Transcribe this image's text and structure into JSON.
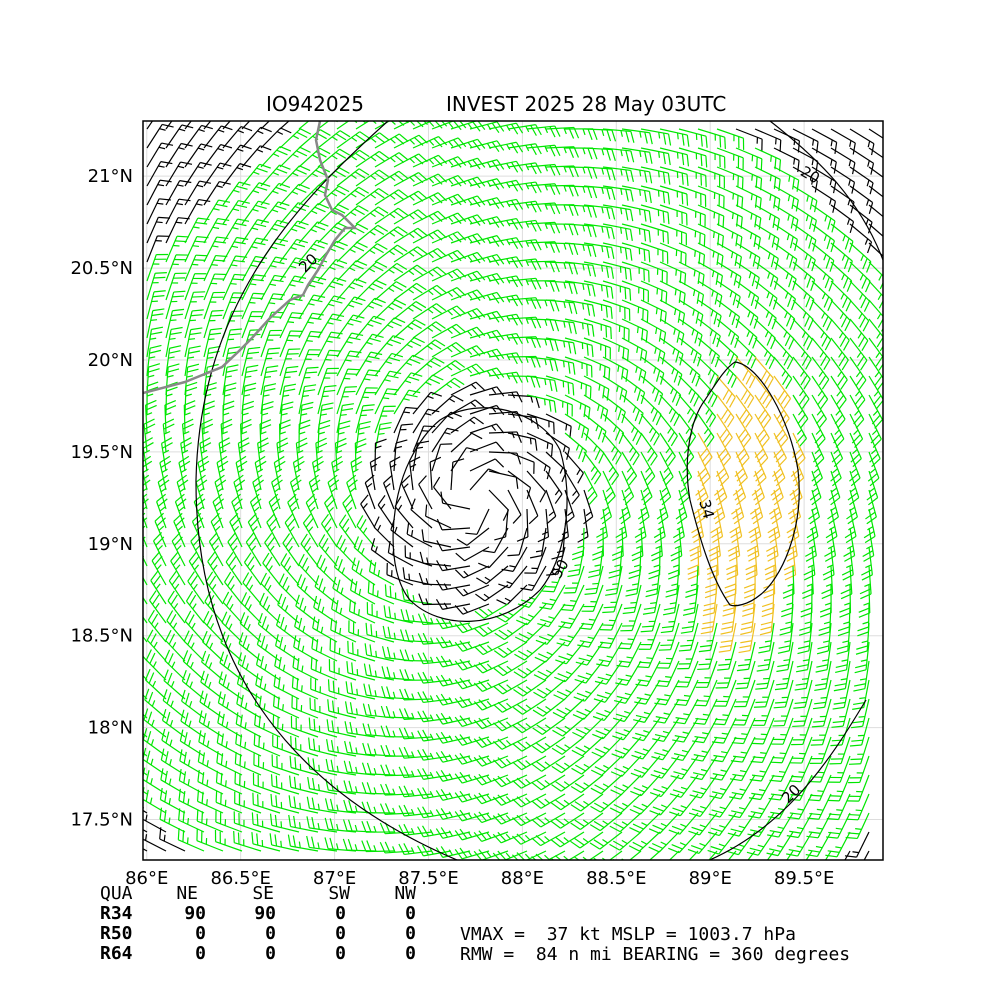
{
  "title": {
    "storm_id": "IO942025",
    "description": "INVEST 2025 28 May 03UTC"
  },
  "map": {
    "lon_range": [
      85.98,
      89.92
    ],
    "lat_range": [
      17.28,
      21.3
    ],
    "lon_ticks": [
      "86°E",
      "86.5°E",
      "87°E",
      "87.5°E",
      "88°E",
      "88.5°E",
      "89°E",
      "89.5°E"
    ],
    "lon_tick_values": [
      86.0,
      86.5,
      87.0,
      87.5,
      88.0,
      88.5,
      89.0,
      89.5
    ],
    "lat_ticks": [
      "17.5°N",
      "18°N",
      "18.5°N",
      "19°N",
      "19.5°N",
      "20°N",
      "20.5°N",
      "21°N"
    ],
    "lat_tick_values": [
      17.5,
      18.0,
      18.5,
      19.0,
      19.5,
      20.0,
      20.5,
      21.0
    ],
    "storm_center": {
      "lon": 87.75,
      "lat": 19.25
    },
    "contour_labels": [
      "20",
      "20",
      "20",
      "50",
      "34"
    ],
    "colors": {
      "below_34kt_barbs": "#000000",
      "34_50kt_barbs": "#00e600",
      "50_64kt_barbs": "#f0c020",
      "coastline": "#888888"
    },
    "grid": true
  },
  "wind_radii_table": {
    "headers": [
      "QUA",
      "NE",
      "SE",
      "SW",
      "NW"
    ],
    "rows": [
      {
        "label": "R34",
        "values": [
          "90",
          "90",
          "0",
          "0"
        ]
      },
      {
        "label": "R50",
        "values": [
          "0",
          "0",
          "0",
          "0"
        ]
      },
      {
        "label": "R64",
        "values": [
          "0",
          "0",
          "0",
          "0"
        ]
      }
    ]
  },
  "stats": {
    "line1": "VMAX =  37 kt MSLP = 1003.7 hPa",
    "line2": "RMW =  84 n mi BEARING = 360 degrees"
  }
}
